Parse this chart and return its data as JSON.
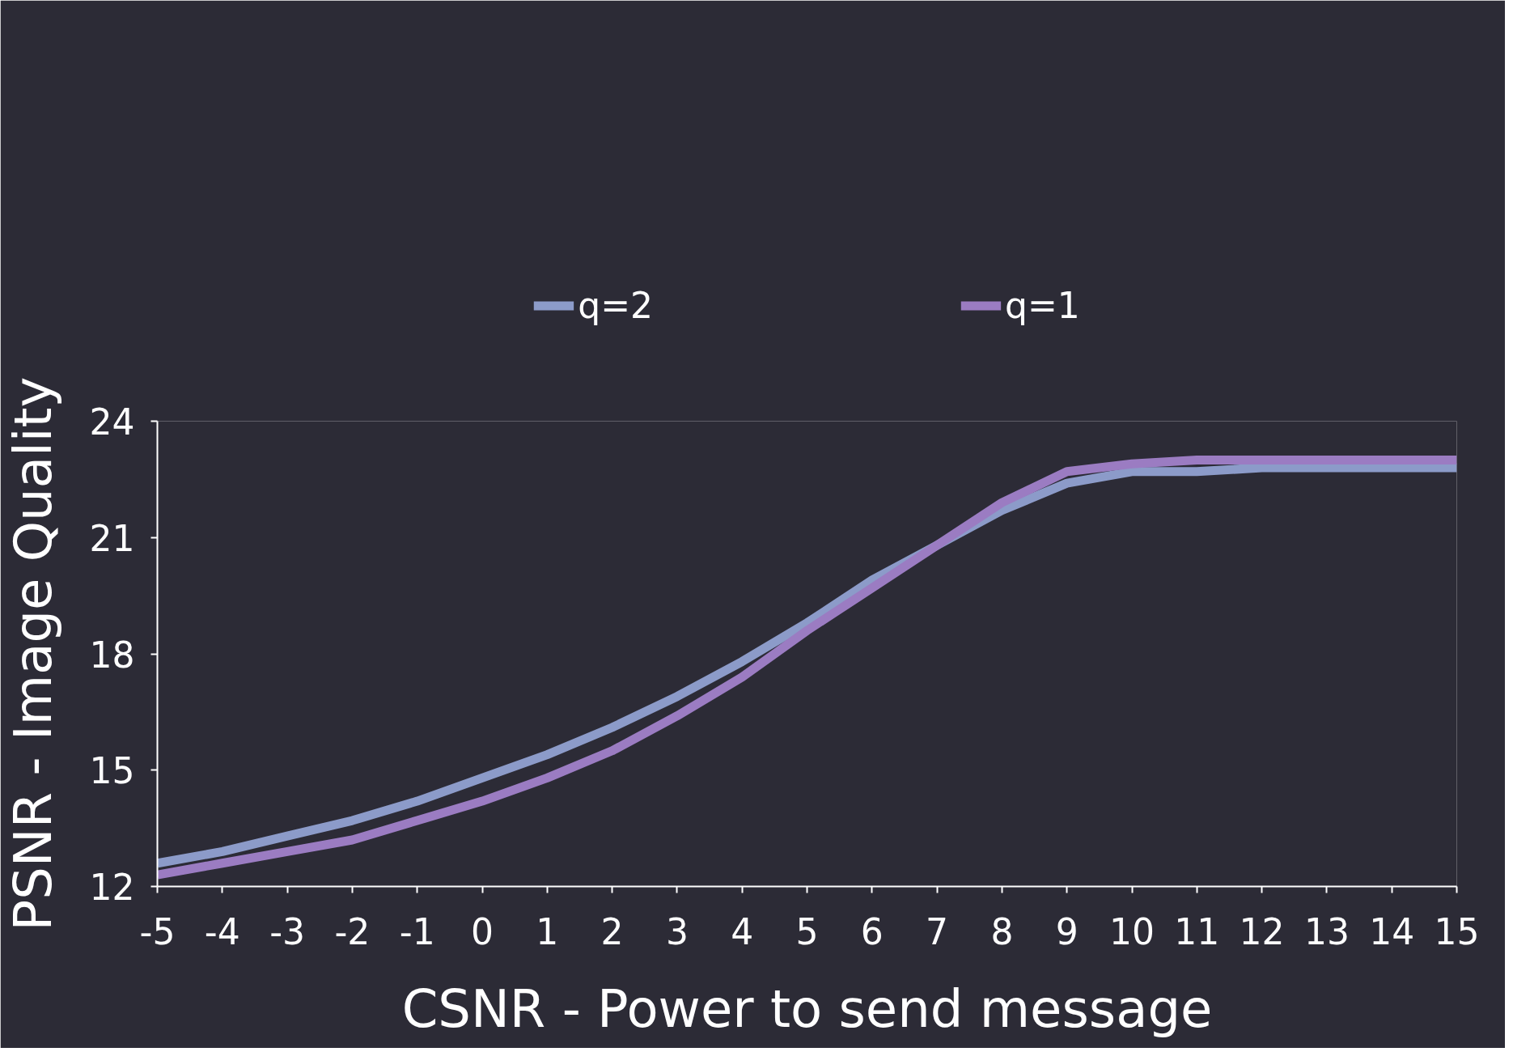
{
  "chart_data": {
    "type": "line",
    "xlabel": "CSNR - Power to send message",
    "ylabel": "PSNR - Image Quality",
    "x": [
      -5,
      -4,
      -3,
      -2,
      -1,
      0,
      1,
      2,
      3,
      4,
      5,
      6,
      7,
      8,
      9,
      10,
      11,
      12,
      13,
      14,
      15
    ],
    "series": [
      {
        "name": "q=2",
        "color": "#8c9bc9",
        "values": [
          12.6,
          12.9,
          13.3,
          13.7,
          14.2,
          14.8,
          15.4,
          16.1,
          16.9,
          17.8,
          18.8,
          19.9,
          20.8,
          21.7,
          22.4,
          22.7,
          22.7,
          22.8,
          22.8,
          22.8,
          22.8
        ]
      },
      {
        "name": "q=1",
        "color": "#9b7cc2",
        "values": [
          12.3,
          12.6,
          12.9,
          13.2,
          13.7,
          14.2,
          14.8,
          15.5,
          16.4,
          17.4,
          18.6,
          19.7,
          20.8,
          21.9,
          22.7,
          22.9,
          23.0,
          23.0,
          23.0,
          23.0,
          23.0
        ]
      }
    ],
    "xlim": [
      -5,
      15
    ],
    "ylim": [
      12,
      24
    ],
    "xticks": [
      -5,
      -4,
      -3,
      -2,
      -1,
      0,
      1,
      2,
      3,
      4,
      5,
      6,
      7,
      8,
      9,
      10,
      11,
      12,
      13,
      14,
      15
    ],
    "yticks": [
      12,
      15,
      18,
      21,
      24
    ],
    "grid": false,
    "legend": "top",
    "marker": "none",
    "line_style": "solid"
  }
}
